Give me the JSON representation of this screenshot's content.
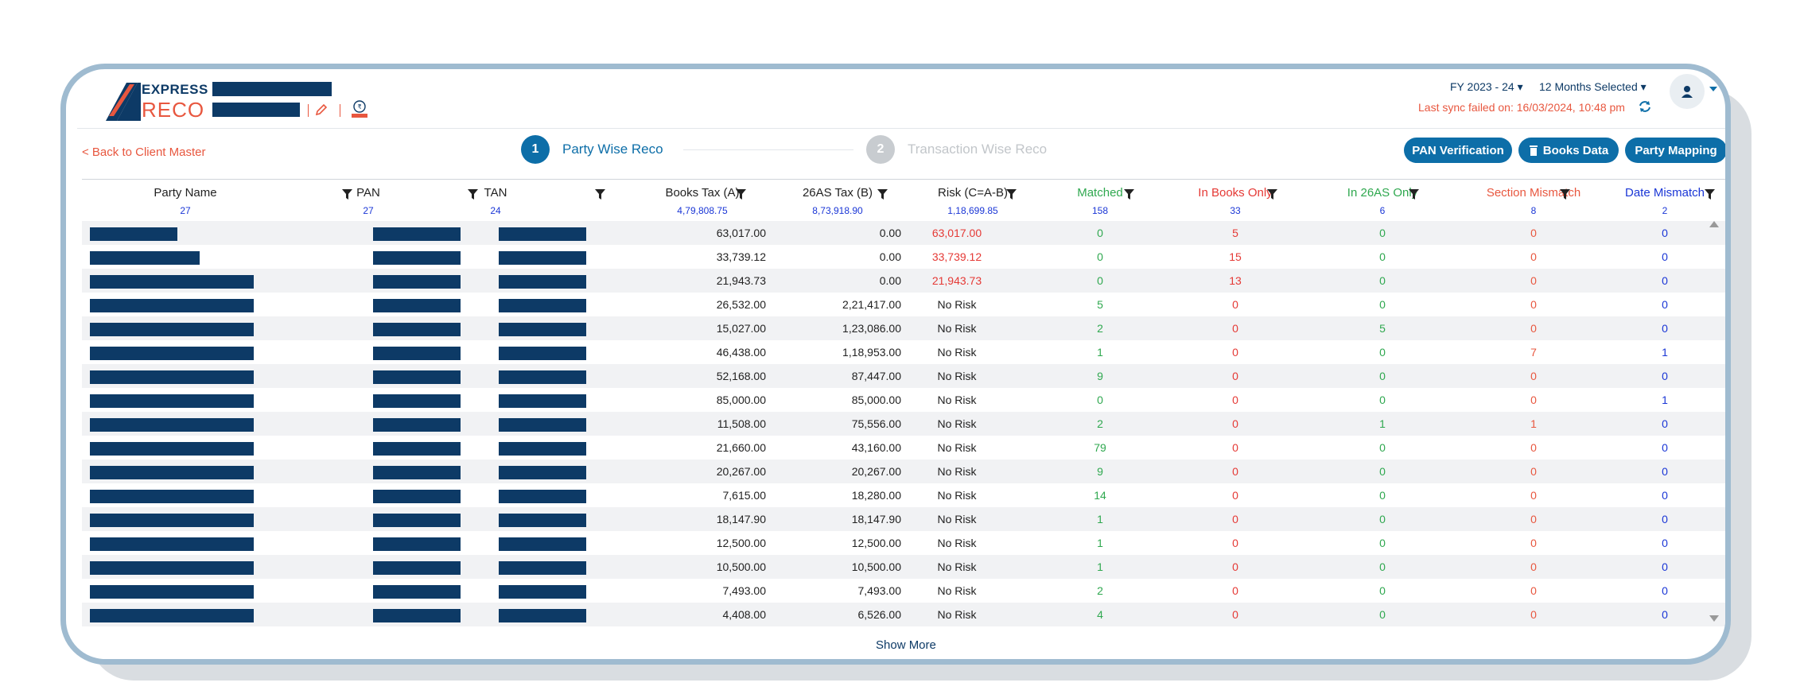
{
  "brand": {
    "line1": "EXPRESS",
    "line2": "RECO"
  },
  "header": {
    "fy": "FY 2023 - 24",
    "months": "12 Months Selected",
    "sync_status": "Last sync failed on: 16/03/2024, 10:48 pm"
  },
  "toolbar": {
    "back_label": "< Back to Client Master",
    "steps": [
      {
        "number": "1",
        "label": "Party Wise Reco"
      },
      {
        "number": "2",
        "label": "Transaction Wise Reco"
      }
    ],
    "buttons": {
      "pan_verification": "PAN Verification",
      "books_data": "Books Data",
      "party_mapping": "Party Mapping"
    }
  },
  "colors": {
    "primary": "#0d6ea8",
    "navy": "#0d3a66",
    "accent": "#e8573f",
    "green": "#2fa84f",
    "red": "#e53935",
    "blue": "#1a36d6"
  },
  "table": {
    "columns": [
      {
        "label": "Party Name",
        "count": "27"
      },
      {
        "label": "PAN",
        "count": "27"
      },
      {
        "label": "TAN",
        "count": "24"
      },
      {
        "label": "Books Tax (A)",
        "count": "4,79,808.75"
      },
      {
        "label": "26AS Tax (B)",
        "count": "8,73,918.90"
      },
      {
        "label": "Risk (C=A-B)",
        "count": "1,18,699.85"
      },
      {
        "label": "Matched",
        "count": "158"
      },
      {
        "label": "In Books Only",
        "count": "33"
      },
      {
        "label": "In 26AS Only",
        "count": "6"
      },
      {
        "label": "Section Mismatch",
        "count": "8"
      },
      {
        "label": "Date Mismatch",
        "count": "2"
      }
    ],
    "rows": [
      {
        "books": "63,017.00",
        "as26": "0.00",
        "risk": "63,017.00",
        "matched": "0",
        "books_only": "5",
        "as26_only": "0",
        "section": "0",
        "date": "0"
      },
      {
        "books": "33,739.12",
        "as26": "0.00",
        "risk": "33,739.12",
        "matched": "0",
        "books_only": "15",
        "as26_only": "0",
        "section": "0",
        "date": "0"
      },
      {
        "books": "21,943.73",
        "as26": "0.00",
        "risk": "21,943.73",
        "matched": "0",
        "books_only": "13",
        "as26_only": "0",
        "section": "0",
        "date": "0"
      },
      {
        "books": "26,532.00",
        "as26": "2,21,417.00",
        "risk": "No Risk",
        "matched": "5",
        "books_only": "0",
        "as26_only": "0",
        "section": "0",
        "date": "0"
      },
      {
        "books": "15,027.00",
        "as26": "1,23,086.00",
        "risk": "No Risk",
        "matched": "2",
        "books_only": "0",
        "as26_only": "5",
        "section": "0",
        "date": "0"
      },
      {
        "books": "46,438.00",
        "as26": "1,18,953.00",
        "risk": "No Risk",
        "matched": "1",
        "books_only": "0",
        "as26_only": "0",
        "section": "7",
        "date": "1"
      },
      {
        "books": "52,168.00",
        "as26": "87,447.00",
        "risk": "No Risk",
        "matched": "9",
        "books_only": "0",
        "as26_only": "0",
        "section": "0",
        "date": "0"
      },
      {
        "books": "85,000.00",
        "as26": "85,000.00",
        "risk": "No Risk",
        "matched": "0",
        "books_only": "0",
        "as26_only": "0",
        "section": "0",
        "date": "1"
      },
      {
        "books": "11,508.00",
        "as26": "75,556.00",
        "risk": "No Risk",
        "matched": "2",
        "books_only": "0",
        "as26_only": "1",
        "section": "1",
        "date": "0"
      },
      {
        "books": "21,660.00",
        "as26": "43,160.00",
        "risk": "No Risk",
        "matched": "79",
        "books_only": "0",
        "as26_only": "0",
        "section": "0",
        "date": "0"
      },
      {
        "books": "20,267.00",
        "as26": "20,267.00",
        "risk": "No Risk",
        "matched": "9",
        "books_only": "0",
        "as26_only": "0",
        "section": "0",
        "date": "0"
      },
      {
        "books": "7,615.00",
        "as26": "18,280.00",
        "risk": "No Risk",
        "matched": "14",
        "books_only": "0",
        "as26_only": "0",
        "section": "0",
        "date": "0"
      },
      {
        "books": "18,147.90",
        "as26": "18,147.90",
        "risk": "No Risk",
        "matched": "1",
        "books_only": "0",
        "as26_only": "0",
        "section": "0",
        "date": "0"
      },
      {
        "books": "12,500.00",
        "as26": "12,500.00",
        "risk": "No Risk",
        "matched": "1",
        "books_only": "0",
        "as26_only": "0",
        "section": "0",
        "date": "0"
      },
      {
        "books": "10,500.00",
        "as26": "10,500.00",
        "risk": "No Risk",
        "matched": "1",
        "books_only": "0",
        "as26_only": "0",
        "section": "0",
        "date": "0"
      },
      {
        "books": "7,493.00",
        "as26": "7,493.00",
        "risk": "No Risk",
        "matched": "2",
        "books_only": "0",
        "as26_only": "0",
        "section": "0",
        "date": "0"
      },
      {
        "books": "4,408.00",
        "as26": "6,526.00",
        "risk": "No Risk",
        "matched": "4",
        "books_only": "0",
        "as26_only": "0",
        "section": "0",
        "date": "0"
      }
    ],
    "show_more": "Show More"
  }
}
